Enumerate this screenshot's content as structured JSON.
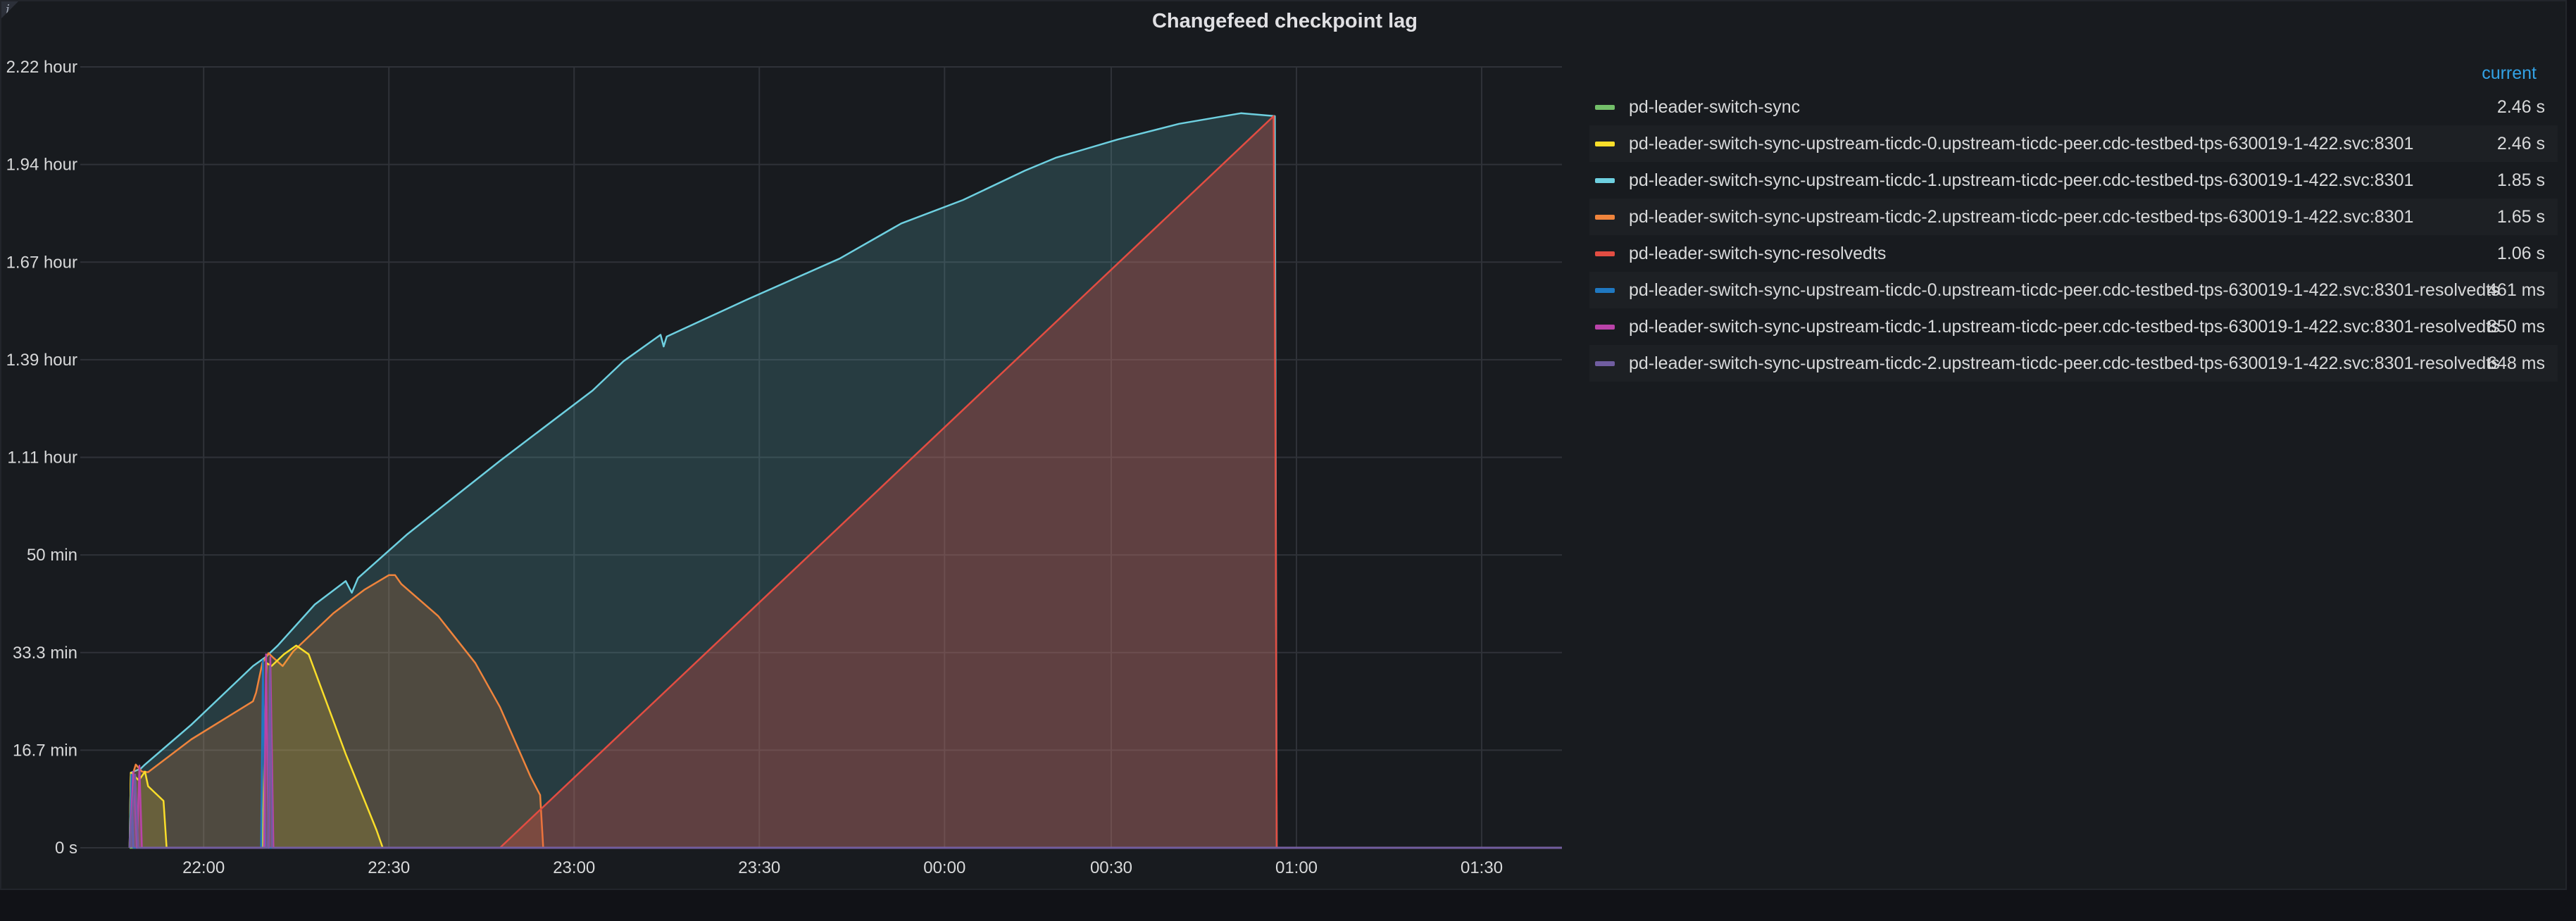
{
  "panel": {
    "title": "Changefeed checkpoint lag",
    "info_glyph": "i"
  },
  "legend": {
    "column_header": "current",
    "entries": [
      {
        "name": "pd-leader-switch-sync",
        "value": "2.46 s",
        "color": "#73bf69"
      },
      {
        "name": "pd-leader-switch-sync-upstream-ticdc-0.upstream-ticdc-peer.cdc-testbed-tps-630019-1-422.svc:8301",
        "value": "2.46 s",
        "color": "#fade2a"
      },
      {
        "name": "pd-leader-switch-sync-upstream-ticdc-1.upstream-ticdc-peer.cdc-testbed-tps-630019-1-422.svc:8301",
        "value": "1.85 s",
        "color": "#6ed0e0"
      },
      {
        "name": "pd-leader-switch-sync-upstream-ticdc-2.upstream-ticdc-peer.cdc-testbed-tps-630019-1-422.svc:8301",
        "value": "1.65 s",
        "color": "#ef843c"
      },
      {
        "name": "pd-leader-switch-sync-resolvedts",
        "value": "1.06 s",
        "color": "#e24d42"
      },
      {
        "name": "pd-leader-switch-sync-upstream-ticdc-0.upstream-ticdc-peer.cdc-testbed-tps-630019-1-422.svc:8301-resolvedts",
        "value": "461 ms",
        "color": "#1f78c1"
      },
      {
        "name": "pd-leader-switch-sync-upstream-ticdc-1.upstream-ticdc-peer.cdc-testbed-tps-630019-1-422.svc:8301-resolvedts",
        "value": "850 ms",
        "color": "#ba43a9"
      },
      {
        "name": "pd-leader-switch-sync-upstream-ticdc-2.upstream-ticdc-peer.cdc-testbed-tps-630019-1-422.svc:8301-resolvedts",
        "value": "648 ms",
        "color": "#705da0"
      }
    ]
  },
  "chart_data": {
    "type": "area",
    "title": "Changefeed checkpoint lag",
    "xlabel": "",
    "ylabel": "",
    "x_unit": "minutes since 21:40",
    "y_unit": "minutes",
    "xlim": [
      0,
      232
    ],
    "ylim": [
      0,
      133.2
    ],
    "grid": true,
    "legend_position": "right",
    "y_ticks": [
      {
        "value": 0,
        "label": "0 s"
      },
      {
        "value": 16.65,
        "label": "16.7 min"
      },
      {
        "value": 33.3,
        "label": "33.3 min"
      },
      {
        "value": 49.95,
        "label": "50 min"
      },
      {
        "value": 66.6,
        "label": "1.11 hour"
      },
      {
        "value": 83.25,
        "label": "1.39 hour"
      },
      {
        "value": 99.9,
        "label": "1.67 hour"
      },
      {
        "value": 116.55,
        "label": "1.94 hour"
      },
      {
        "value": 133.2,
        "label": "2.22 hour"
      }
    ],
    "x_ticks": [
      {
        "value": 12,
        "label": "22:00"
      },
      {
        "value": 42,
        "label": "22:30"
      },
      {
        "value": 72,
        "label": "23:00"
      },
      {
        "value": 102,
        "label": "23:30"
      },
      {
        "value": 132,
        "label": "00:00"
      },
      {
        "value": 159,
        "label": "00:30"
      },
      {
        "value": 189,
        "label": "01:00"
      },
      {
        "value": 219,
        "label": "01:30"
      }
    ],
    "series": [
      {
        "name": "pd-leader-switch-sync-upstream-ticdc-1.upstream-ticdc-peer.cdc-testbed-tps-630019-1-422.svc:8301",
        "color": "#6ed0e0",
        "fill_opacity": 0.18,
        "points": [
          [
            0,
            0
          ],
          [
            0.2,
            12.8
          ],
          [
            1.8,
            13.5
          ],
          [
            2.4,
            14.1
          ],
          [
            10,
            21
          ],
          [
            20,
            31
          ],
          [
            22,
            32.5
          ],
          [
            24,
            34.5
          ],
          [
            30,
            41.5
          ],
          [
            35,
            45.5
          ],
          [
            36,
            43.5
          ],
          [
            37,
            46
          ],
          [
            45,
            53.5
          ],
          [
            60,
            66
          ],
          [
            75,
            78
          ],
          [
            80,
            83
          ],
          [
            86,
            87.5
          ],
          [
            86.5,
            85.5
          ],
          [
            87,
            87.2
          ],
          [
            100,
            93.5
          ],
          [
            115,
            100.5
          ],
          [
            125,
            106.5
          ],
          [
            135,
            110.5
          ],
          [
            145,
            115.5
          ],
          [
            150,
            117.7
          ],
          [
            160,
            120.8
          ],
          [
            170,
            123.5
          ],
          [
            180,
            125.3
          ],
          [
            185.5,
            124.8
          ],
          [
            185.8,
            0
          ],
          [
            232,
            0
          ]
        ]
      },
      {
        "name": "pd-leader-switch-sync-upstream-ticdc-2.upstream-ticdc-peer.cdc-testbed-tps-630019-1-422.svc:8301",
        "color": "#ef843c",
        "fill_opacity": 0.2,
        "points": [
          [
            0,
            0
          ],
          [
            0.2,
            12.8
          ],
          [
            0.5,
            12.5
          ],
          [
            1.0,
            14.2
          ],
          [
            2.0,
            13.0
          ],
          [
            3.0,
            12.9
          ],
          [
            10,
            18.5
          ],
          [
            20,
            25
          ],
          [
            20.5,
            26.5
          ],
          [
            21.5,
            31.5
          ],
          [
            22.5,
            33.2
          ],
          [
            23.2,
            32.5
          ],
          [
            24.8,
            31.0
          ],
          [
            26.5,
            33.5
          ],
          [
            33,
            40
          ],
          [
            38,
            44
          ],
          [
            42,
            46.5
          ],
          [
            43,
            46.5
          ],
          [
            44,
            45
          ],
          [
            50,
            39.5
          ],
          [
            56,
            31.5
          ],
          [
            60,
            24
          ],
          [
            65,
            12
          ],
          [
            66.5,
            9
          ],
          [
            67,
            0
          ],
          [
            232,
            0
          ]
        ]
      },
      {
        "name": "pd-leader-switch-sync-upstream-ticdc-0.upstream-ticdc-peer.cdc-testbed-tps-630019-1-422.svc:8301",
        "color": "#fade2a",
        "fill_opacity": 0.15,
        "points": [
          [
            0,
            0
          ],
          [
            0.2,
            12.8
          ],
          [
            1.5,
            11.5
          ],
          [
            2.5,
            13.0
          ],
          [
            3,
            10.5
          ],
          [
            5.5,
            8.0
          ],
          [
            6,
            0
          ],
          [
            8,
            0
          ],
          [
            8.5,
            0
          ],
          [
            21.5,
            0
          ],
          [
            22.2,
            31.5
          ],
          [
            23.0,
            31.0
          ],
          [
            25.0,
            33.0
          ],
          [
            27,
            34.5
          ],
          [
            29,
            33.0
          ],
          [
            35,
            16
          ],
          [
            40,
            3
          ],
          [
            41,
            0
          ],
          [
            232,
            0
          ]
        ]
      },
      {
        "name": "pd-leader-switch-sync-resolvedts",
        "color": "#e24d42",
        "fill_opacity": 0.3,
        "points": [
          [
            0,
            0
          ],
          [
            60,
            0
          ],
          [
            185.3,
            124.8
          ],
          [
            185.6,
            70
          ],
          [
            185.8,
            0
          ],
          [
            232,
            0
          ]
        ]
      },
      {
        "name": "pd-leader-switch-sync",
        "color": "#73bf69",
        "fill_opacity": 0.1,
        "points": [
          [
            0,
            0
          ],
          [
            232,
            0
          ]
        ]
      },
      {
        "name": "pd-leader-switch-sync-upstream-ticdc-0.upstream-ticdc-peer.cdc-testbed-tps-630019-1-422.svc:8301-resolvedts",
        "color": "#1f78c1",
        "fill_opacity": 0.3,
        "points": [
          [
            0,
            0
          ],
          [
            0.3,
            12.5
          ],
          [
            0.6,
            0
          ],
          [
            21.3,
            0
          ],
          [
            21.6,
            32
          ],
          [
            22.0,
            0
          ],
          [
            232,
            0
          ]
        ]
      },
      {
        "name": "pd-leader-switch-sync-upstream-ticdc-1.upstream-ticdc-peer.cdc-testbed-tps-630019-1-422.svc:8301-resolvedts",
        "color": "#ba43a9",
        "fill_opacity": 0.35,
        "points": [
          [
            0,
            0
          ],
          [
            0.6,
            13
          ],
          [
            1.2,
            0
          ],
          [
            1.6,
            14
          ],
          [
            2.0,
            0
          ],
          [
            21.8,
            0
          ],
          [
            22.1,
            33
          ],
          [
            22.5,
            0
          ],
          [
            22.8,
            32.5
          ],
          [
            23.3,
            0
          ],
          [
            232,
            0
          ]
        ]
      },
      {
        "name": "pd-leader-switch-sync-upstream-ticdc-2.upstream-ticdc-peer.cdc-testbed-tps-630019-1-422.svc:8301-resolvedts",
        "color": "#705da0",
        "fill_opacity": 0.35,
        "points": [
          [
            0,
            0
          ],
          [
            0.9,
            12.5
          ],
          [
            1.4,
            0
          ],
          [
            22.4,
            0
          ],
          [
            22.7,
            31
          ],
          [
            23.1,
            0
          ],
          [
            232,
            0
          ]
        ]
      }
    ]
  }
}
